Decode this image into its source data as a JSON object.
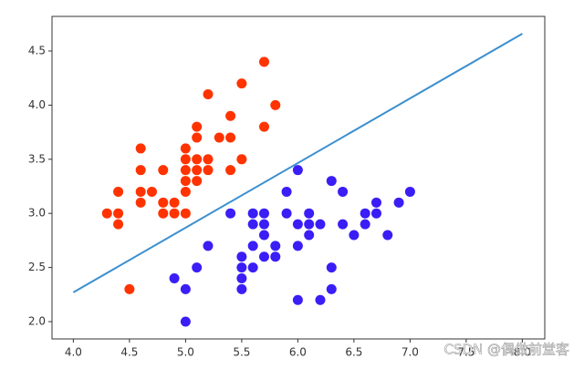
{
  "chart_data": {
    "type": "scatter",
    "xlim": [
      3.81,
      8.2
    ],
    "ylim": [
      1.84,
      4.82
    ],
    "xticks": [
      {
        "value": 4.0,
        "label": "4.0"
      },
      4.5,
      {
        "value": 5.0,
        "label": "5.0"
      },
      5.5,
      {
        "value": 6.0,
        "label": "6.0"
      },
      6.5,
      {
        "value": 7.0,
        "label": "7.0"
      },
      7.5,
      {
        "value": 8.0,
        "label": "8.0"
      }
    ],
    "yticks": [
      {
        "value": 2.0,
        "label": "2.0"
      },
      2.5,
      {
        "value": 3.0,
        "label": "3.0"
      },
      3.5,
      {
        "value": 4.0,
        "label": "4.0"
      },
      4.5
    ],
    "series": [
      {
        "color": "#ff3300",
        "x": [
          4.3,
          4.4,
          4.4,
          4.4,
          4.5,
          4.6,
          4.6,
          4.6,
          4.6,
          4.7,
          4.8,
          4.8,
          4.8,
          4.9,
          4.9,
          5.0,
          5.0,
          5.0,
          5.0,
          5.0,
          5.0,
          5.1,
          5.1,
          5.1,
          5.1,
          5.1,
          5.2,
          5.2,
          5.2,
          5.3,
          5.4,
          5.4,
          5.4,
          5.5,
          5.5,
          5.7,
          5.7,
          5.8
        ],
        "y": [
          3.0,
          2.9,
          3.0,
          3.2,
          2.3,
          3.1,
          3.2,
          3.4,
          3.6,
          3.2,
          3.0,
          3.1,
          3.4,
          3.0,
          3.1,
          3.0,
          3.2,
          3.3,
          3.4,
          3.5,
          3.6,
          3.3,
          3.4,
          3.5,
          3.7,
          3.8,
          3.4,
          3.5,
          4.1,
          3.7,
          3.4,
          3.7,
          3.9,
          3.5,
          4.2,
          3.8,
          4.4,
          4.0
        ]
      },
      {
        "color": "#3a1ef5",
        "x": [
          4.9,
          5.0,
          5.0,
          5.1,
          5.2,
          5.4,
          5.5,
          5.5,
          5.5,
          5.5,
          5.6,
          5.6,
          5.6,
          5.6,
          5.7,
          5.7,
          5.7,
          5.7,
          5.8,
          5.8,
          5.9,
          5.9,
          6.0,
          6.0,
          6.0,
          6.0,
          6.1,
          6.1,
          6.1,
          6.2,
          6.2,
          6.3,
          6.3,
          6.3,
          6.4,
          6.4,
          6.5,
          6.6,
          6.6,
          6.7,
          6.7,
          6.8,
          6.9,
          7.0
        ],
        "y": [
          2.4,
          2.0,
          2.3,
          2.5,
          2.7,
          3.0,
          2.3,
          2.4,
          2.5,
          2.6,
          2.5,
          2.7,
          2.9,
          3.0,
          2.6,
          2.8,
          2.9,
          3.0,
          2.6,
          2.7,
          3.0,
          3.2,
          2.2,
          2.7,
          2.9,
          3.4,
          2.8,
          2.9,
          3.0,
          2.2,
          2.9,
          2.3,
          2.5,
          3.3,
          2.9,
          3.2,
          2.8,
          2.9,
          3.0,
          3.0,
          3.1,
          2.8,
          3.1,
          3.2
        ]
      },
      {
        "type": "line",
        "color": "#3b8fd0",
        "x": [
          4.0,
          8.0
        ],
        "y": [
          2.27,
          4.66
        ]
      }
    ]
  },
  "watermark": "CSDN @偶做前堂客"
}
